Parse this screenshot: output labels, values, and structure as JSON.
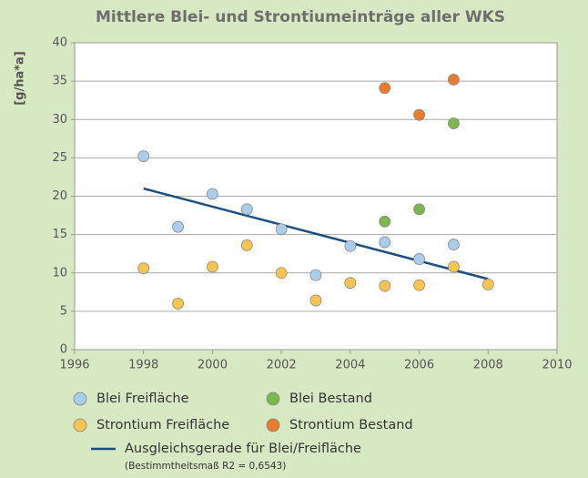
{
  "chart_data": {
    "type": "scatter",
    "title": "Mittlere Blei- und Strontiumeinträge aller WKS",
    "y_label": "[g/ha*a]",
    "xlim": [
      1996,
      2010
    ],
    "xticks": [
      1996,
      1998,
      2000,
      2002,
      2004,
      2006,
      2008,
      2010
    ],
    "ylim": [
      0,
      40
    ],
    "yticks": [
      0,
      5,
      10,
      15,
      20,
      25,
      30,
      35,
      40
    ],
    "grid": true,
    "series": [
      {
        "name": "Blei Freifläche",
        "color": "#a9cdea",
        "x": [
          1998,
          1999,
          2000,
          2001,
          2002,
          2003,
          2004,
          2005,
          2006,
          2007
        ],
        "values": [
          25.2,
          16.0,
          20.3,
          18.3,
          15.7,
          9.7,
          13.5,
          14.0,
          11.8,
          13.7
        ]
      },
      {
        "name": "Blei Bestand",
        "color": "#7cb84a",
        "x": [
          2005,
          2006,
          2007
        ],
        "values": [
          16.7,
          18.3,
          29.5
        ]
      },
      {
        "name": "Strontium Freifläche",
        "color": "#f9c54f",
        "x": [
          1998,
          1999,
          2000,
          2001,
          2002,
          2003,
          2004,
          2005,
          2006,
          2007,
          2008
        ],
        "values": [
          10.6,
          6.0,
          10.8,
          13.6,
          10.0,
          6.4,
          8.7,
          8.3,
          8.4,
          10.8,
          8.5
        ]
      },
      {
        "name": "Strontium Bestand",
        "color": "#e97c2b",
        "x": [
          2005,
          2006,
          2007
        ],
        "values": [
          34.1,
          30.6,
          35.2
        ]
      }
    ],
    "trendline": {
      "name": "Ausgleichsgerade für Blei/Freifläche",
      "note": "(Bestimmtheitsmaß R2 = 0,6543)",
      "color": "#1b4f7f",
      "x": [
        1998,
        2008
      ],
      "values": [
        21.0,
        9.2
      ]
    }
  }
}
